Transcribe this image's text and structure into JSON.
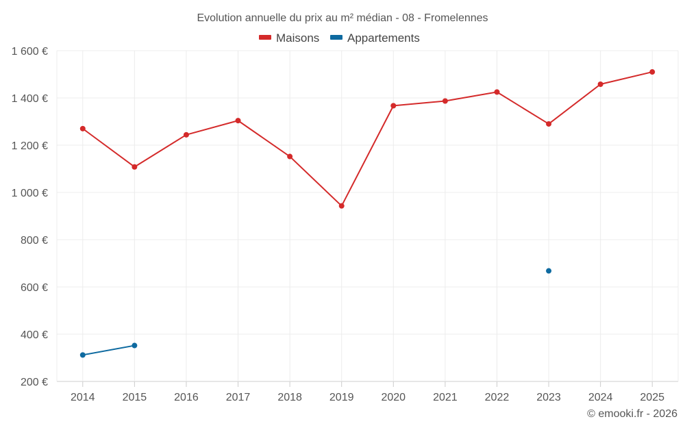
{
  "chart_data": {
    "type": "line",
    "title": "Evolution annuelle du prix au m² médian - 08 - Fromelennes",
    "categories": [
      "2014",
      "2015",
      "2016",
      "2017",
      "2018",
      "2019",
      "2020",
      "2021",
      "2022",
      "2023",
      "2024",
      "2025"
    ],
    "y_tick_labels": [
      "200 €",
      "400 €",
      "600 €",
      "800 €",
      "1 000 €",
      "1 200 €",
      "1 400 €",
      "1 600 €"
    ],
    "y_ticks": [
      200,
      400,
      600,
      800,
      1000,
      1200,
      1400,
      1600
    ],
    "ylim": [
      200,
      1600
    ],
    "grid": true,
    "legend_position": "top-center",
    "series": [
      {
        "name": "Maisons",
        "color": "#d42a2a",
        "values": [
          1270,
          1108,
          1244,
          1304,
          1152,
          943,
          1367,
          1387,
          1425,
          1290,
          1458,
          1510
        ]
      },
      {
        "name": "Appartements",
        "color": "#0e6aa0",
        "values": [
          312,
          352,
          null,
          null,
          null,
          null,
          null,
          null,
          null,
          668,
          null,
          null
        ]
      }
    ],
    "credit": "© emooki.fr - 2026"
  }
}
